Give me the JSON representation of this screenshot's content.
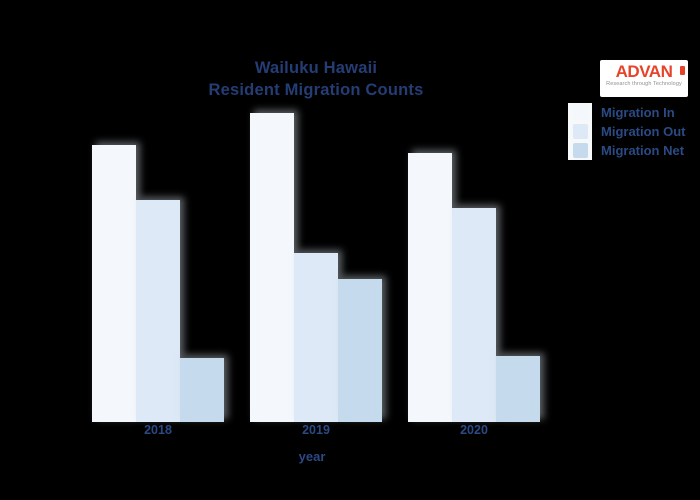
{
  "title": {
    "line1": "Wailuku Hawaii",
    "line2": "Resident Migration Counts"
  },
  "logo": {
    "name": "ADVAN",
    "tagline": "Research through Technology"
  },
  "chart_data": {
    "type": "bar",
    "title": "Wailuku Hawaii Resident Migration Counts",
    "categories": [
      "2018",
      "2019",
      "2020"
    ],
    "series": [
      {
        "name": "Migration In",
        "color": "#f4f8fd",
        "values": [
          277,
          309,
          269
        ]
      },
      {
        "name": "Migration Out",
        "color": "#dde9f6",
        "values": [
          222,
          169,
          214
        ]
      },
      {
        "name": "Migration Net",
        "color": "#c6daee",
        "values": [
          64,
          143,
          66
        ]
      }
    ],
    "xlabel": "year",
    "ylabel": "",
    "ylim": [
      0,
      310
    ],
    "grid": false,
    "y_axis_visible": false,
    "legend_position": "top-right"
  },
  "colors": {
    "background": "#000000",
    "title_text": "#243d75",
    "label_text": "#2a4a85",
    "logo_red": "#e8432a",
    "logo_tagline": "#8f8f8f",
    "legend_strip": "#f7f8f9"
  }
}
